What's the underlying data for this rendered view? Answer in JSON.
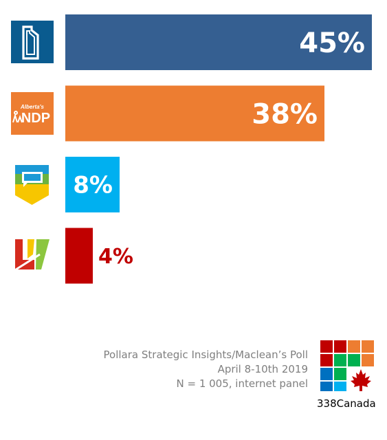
{
  "chart_data": {
    "type": "bar",
    "orientation": "horizontal",
    "categories": [
      "UCP",
      "NDP",
      "Alberta Party",
      "Liberal"
    ],
    "values": [
      45,
      38,
      8,
      4
    ],
    "value_labels": [
      "45%",
      "38%",
      "8%",
      "4%"
    ],
    "bar_colors": [
      "#355f91",
      "#ed7d31",
      "#00b0f0",
      "#c00000"
    ],
    "label_colors": [
      "#ffffff",
      "#ffffff",
      "#ffffff",
      "#c00000"
    ],
    "xlim": [
      0,
      45
    ],
    "grid": false,
    "legend": "none"
  },
  "logos": {
    "ucp": {
      "icon": "alberta-outline-icon",
      "color": "#0a5b8f"
    },
    "ndp": {
      "icon": "ndp-logo-icon",
      "color": "#ed7d31",
      "text_small": "Alberta's",
      "text_big": "NDP"
    },
    "alberta_party": {
      "icon": "speech-bubble-shield-icon"
    },
    "liberal": {
      "icon": "liberal-l-icon"
    }
  },
  "source": {
    "line1": "Pollara Strategic Insights/Maclean’s Poll",
    "line2": "April 8-10th 2019",
    "line3": "N = 1 005, internet panel"
  },
  "brand": {
    "name": "338Canada",
    "icon": "maple-leaf-icon"
  }
}
